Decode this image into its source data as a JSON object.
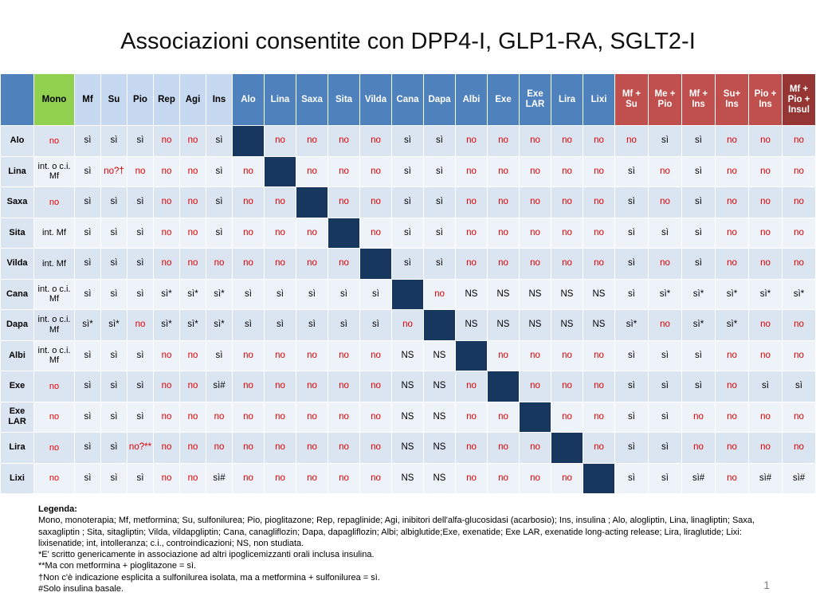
{
  "title": "Associazioni consentite con DPP4-I, GLP1-RA, SGLT2-I",
  "header": [
    {
      "label": "",
      "group": "corner"
    },
    {
      "label": "Mono",
      "group": "mono"
    },
    {
      "label": "Mf",
      "group": "light"
    },
    {
      "label": "Su",
      "group": "light"
    },
    {
      "label": "Pio",
      "group": "light"
    },
    {
      "label": "Rep",
      "group": "light"
    },
    {
      "label": "Agi",
      "group": "light"
    },
    {
      "label": "Ins",
      "group": "light"
    },
    {
      "label": "Alo",
      "group": "blue"
    },
    {
      "label": "Lina",
      "group": "blue"
    },
    {
      "label": "Saxa",
      "group": "blue"
    },
    {
      "label": "Sita",
      "group": "blue"
    },
    {
      "label": "Vilda",
      "group": "blue"
    },
    {
      "label": "Cana",
      "group": "blue"
    },
    {
      "label": "Dapa",
      "group": "blue"
    },
    {
      "label": "Albi",
      "group": "blue"
    },
    {
      "label": "Exe",
      "group": "blue"
    },
    {
      "label": "Exe LAR",
      "group": "blue"
    },
    {
      "label": "Lira",
      "group": "blue"
    },
    {
      "label": "Lixi",
      "group": "blue"
    },
    {
      "label": "Mf + Su",
      "group": "red"
    },
    {
      "label": "Me + Pio",
      "group": "red"
    },
    {
      "label": "Mf + Ins",
      "group": "red"
    },
    {
      "label": "Su+ Ins",
      "group": "red"
    },
    {
      "label": "Pio + Ins",
      "group": "red"
    },
    {
      "label": "Mf + Pio + Insul",
      "group": "dark"
    }
  ],
  "rows": [
    {
      "label": "Alo",
      "cells": [
        "no",
        "sì",
        "sì",
        "sì",
        "no",
        "no",
        "sì",
        "",
        "no",
        "no",
        "no",
        "no",
        "sì",
        "sì",
        "no",
        "no",
        "no",
        "no",
        "no",
        "no",
        "sì",
        "sì",
        "no",
        "no",
        "no"
      ]
    },
    {
      "label": "Lina",
      "cells": [
        "int. o c.i. Mf",
        "sì",
        "no?†",
        "no",
        "no",
        "no",
        "sì",
        "no",
        "",
        "no",
        "no",
        "no",
        "sì",
        "sì",
        "no",
        "no",
        "no",
        "no",
        "no",
        "sì",
        "no",
        "sì",
        "no",
        "no",
        "no"
      ]
    },
    {
      "label": "Saxa",
      "cells": [
        "no",
        "sì",
        "sì",
        "sì",
        "no",
        "no",
        "sì",
        "no",
        "no",
        "",
        "no",
        "no",
        "sì",
        "sì",
        "no",
        "no",
        "no",
        "no",
        "no",
        "sì",
        "no",
        "sì",
        "no",
        "no",
        "no"
      ]
    },
    {
      "label": "Sita",
      "cells": [
        "int. Mf",
        "sì",
        "sì",
        "sì",
        "no",
        "no",
        "sì",
        "no",
        "no",
        "no",
        "",
        "no",
        "sì",
        "sì",
        "no",
        "no",
        "no",
        "no",
        "no",
        "sì",
        "sì",
        "sì",
        "no",
        "no",
        "no"
      ]
    },
    {
      "label": "Vilda",
      "cells": [
        "int. Mf",
        "sì",
        "sì",
        "sì",
        "no",
        "no",
        "no",
        "no",
        "no",
        "no",
        "no",
        "",
        "sì",
        "sì",
        "no",
        "no",
        "no",
        "no",
        "no",
        "sì",
        "no",
        "sì",
        "no",
        "no",
        "no"
      ]
    },
    {
      "label": "Cana",
      "cells": [
        "int. o c.i. Mf",
        "sì",
        "sì",
        "sì",
        "sì*",
        "sì*",
        "sì*",
        "sì",
        "sì",
        "sì",
        "sì",
        "sì",
        "",
        "no",
        "NS",
        "NS",
        "NS",
        "NS",
        "NS",
        "sì",
        "sì*",
        "sì*",
        "sì*",
        "sì*",
        "sì*"
      ]
    },
    {
      "label": "Dapa",
      "cells": [
        "int. o c.i. Mf",
        "sì*",
        "sì*",
        "no",
        "sì*",
        "sì*",
        "sì*",
        "sì",
        "sì",
        "sì",
        "sì",
        "sì",
        "no",
        "",
        "NS",
        "NS",
        "NS",
        "NS",
        "NS",
        "sì*",
        "no",
        "sì*",
        "sì*",
        "no",
        "no"
      ]
    },
    {
      "label": "Albi",
      "cells": [
        "int. o c.i. Mf",
        "sì",
        "sì",
        "sì",
        "no",
        "no",
        "sì",
        "no",
        "no",
        "no",
        "no",
        "no",
        "NS",
        "NS",
        "",
        "no",
        "no",
        "no",
        "no",
        "sì",
        "sì",
        "sì",
        "no",
        "no",
        "no"
      ]
    },
    {
      "label": "Exe",
      "cells": [
        "no",
        "sì",
        "sì",
        "sì",
        "no",
        "no",
        "sì#",
        "no",
        "no",
        "no",
        "no",
        "no",
        "NS",
        "NS",
        "no",
        "",
        "no",
        "no",
        "no",
        "sì",
        "sì",
        "sì",
        "no",
        "sì",
        "sì"
      ]
    },
    {
      "label": "Exe LAR",
      "cells": [
        "no",
        "sì",
        "sì",
        "sì",
        "no",
        "no",
        "no",
        "no",
        "no",
        "no",
        "no",
        "no",
        "NS",
        "NS",
        "no",
        "no",
        "",
        "no",
        "no",
        "sì",
        "sì",
        "no",
        "no",
        "no",
        "no"
      ]
    },
    {
      "label": "Lira",
      "cells": [
        "no",
        "sì",
        "sì",
        "no?**",
        "no",
        "no",
        "no",
        "no",
        "no",
        "no",
        "no",
        "no",
        "NS",
        "NS",
        "no",
        "no",
        "no",
        "",
        "no",
        "sì",
        "sì",
        "no",
        "no",
        "no",
        "no"
      ]
    },
    {
      "label": "Lixi",
      "cells": [
        "no",
        "sì",
        "sì",
        "sì",
        "no",
        "no",
        "sì#",
        "no",
        "no",
        "no",
        "no",
        "no",
        "NS",
        "NS",
        "no",
        "no",
        "no",
        "no",
        "",
        "sì",
        "sì",
        "sì#",
        "no",
        "sì#",
        "sì#"
      ]
    }
  ],
  "legend": {
    "heading": "Legenda:",
    "lines": [
      "Mono, monoterapia; Mf, metformina; Su, sulfonilurea; Pio, pioglitazone; Rep, repaglinide; Agi, inibitori dell'alfa-glucosidasi (acarbosio); Ins, insulina ; Alo, alogliptin, Lina, linagliptin; Saxa, saxagliptin ; Sita, sitagliptin; Vilda, vildapgliptin; Cana, canagliflozin; Dapa, dapagliflozin; Albi; albiglutide;Exe, exenatide; Exe LAR, exenatide long-acting release; Lira, liraglutide; Lixi: lixisenatide; int, intolleranza; c.i., controindicazioni; NS, non studiata.",
      "*E' scritto genericamente in associazione ad altri ipoglicemizzanti orali inclusa insulina.",
      "**Ma con metformina + pioglitazone = sì.",
      "†Non c'è indicazione esplicita a sulfonilurea isolata, ma a metformina + sulfonilurea = sì.",
      "#Solo insulina basale."
    ]
  },
  "page_number": "1",
  "colors": {
    "mono_header": "#92d050",
    "oral_header": "#c6d9f1",
    "drug_header": "#4f81bd",
    "combo_header": "#c0504d",
    "triple_header": "#963634",
    "diagonal": "#17375e",
    "no_text": "#e00000"
  }
}
